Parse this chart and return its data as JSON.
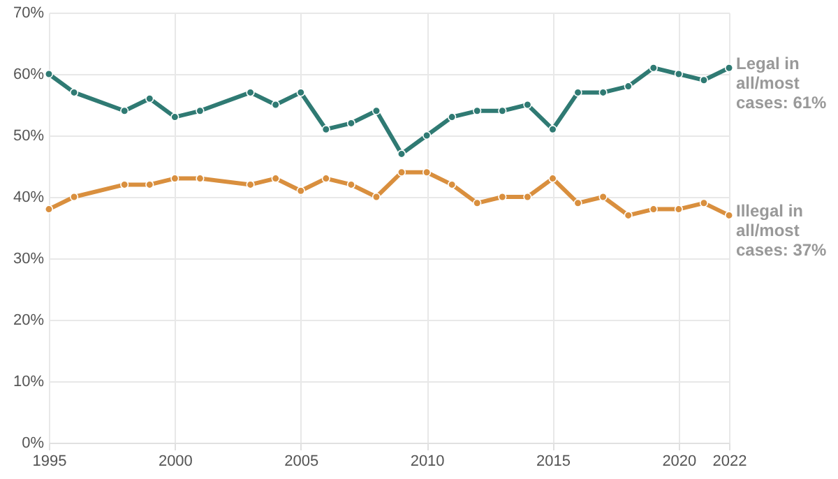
{
  "chart_data": {
    "type": "line",
    "x": [
      1995,
      1996,
      1998,
      1999,
      2000,
      2001,
      2003,
      2004,
      2005,
      2006,
      2007,
      2008,
      2009,
      2010,
      2011,
      2012,
      2013,
      2014,
      2015,
      2016,
      2017,
      2018,
      2019,
      2020,
      2021,
      2022
    ],
    "series": [
      {
        "name": "Legal in all/most cases: 61%",
        "color": "#2f7a73",
        "values": [
          60,
          57,
          54,
          56,
          53,
          54,
          57,
          55,
          57,
          51,
          52,
          54,
          47,
          50,
          53,
          54,
          54,
          55,
          51,
          57,
          57,
          58,
          61,
          60,
          59,
          61
        ]
      },
      {
        "name": "Illegal in all/most cases: 37%",
        "color": "#d98f3e",
        "values": [
          38,
          40,
          42,
          42,
          43,
          43,
          42,
          43,
          41,
          43,
          42,
          40,
          44,
          44,
          42,
          39,
          40,
          40,
          43,
          39,
          40,
          37,
          38,
          38,
          39,
          37
        ]
      }
    ],
    "xlim": [
      1995,
      2022
    ],
    "xticks": [
      1995,
      2000,
      2005,
      2010,
      2015,
      2020,
      2022
    ],
    "ylim": [
      0,
      70
    ],
    "yticks": [
      {
        "value": 0,
        "label": "0%"
      },
      {
        "value": 10,
        "label": "10%"
      },
      {
        "value": 20,
        "label": "20%"
      },
      {
        "value": 30,
        "label": "30%"
      },
      {
        "value": 40,
        "label": "40%"
      },
      {
        "value": 50,
        "label": "50%"
      },
      {
        "value": 60,
        "label": "60%"
      },
      {
        "value": 70,
        "label": "70%"
      }
    ],
    "grid": true,
    "marker": "circle",
    "line_style": "solid"
  }
}
